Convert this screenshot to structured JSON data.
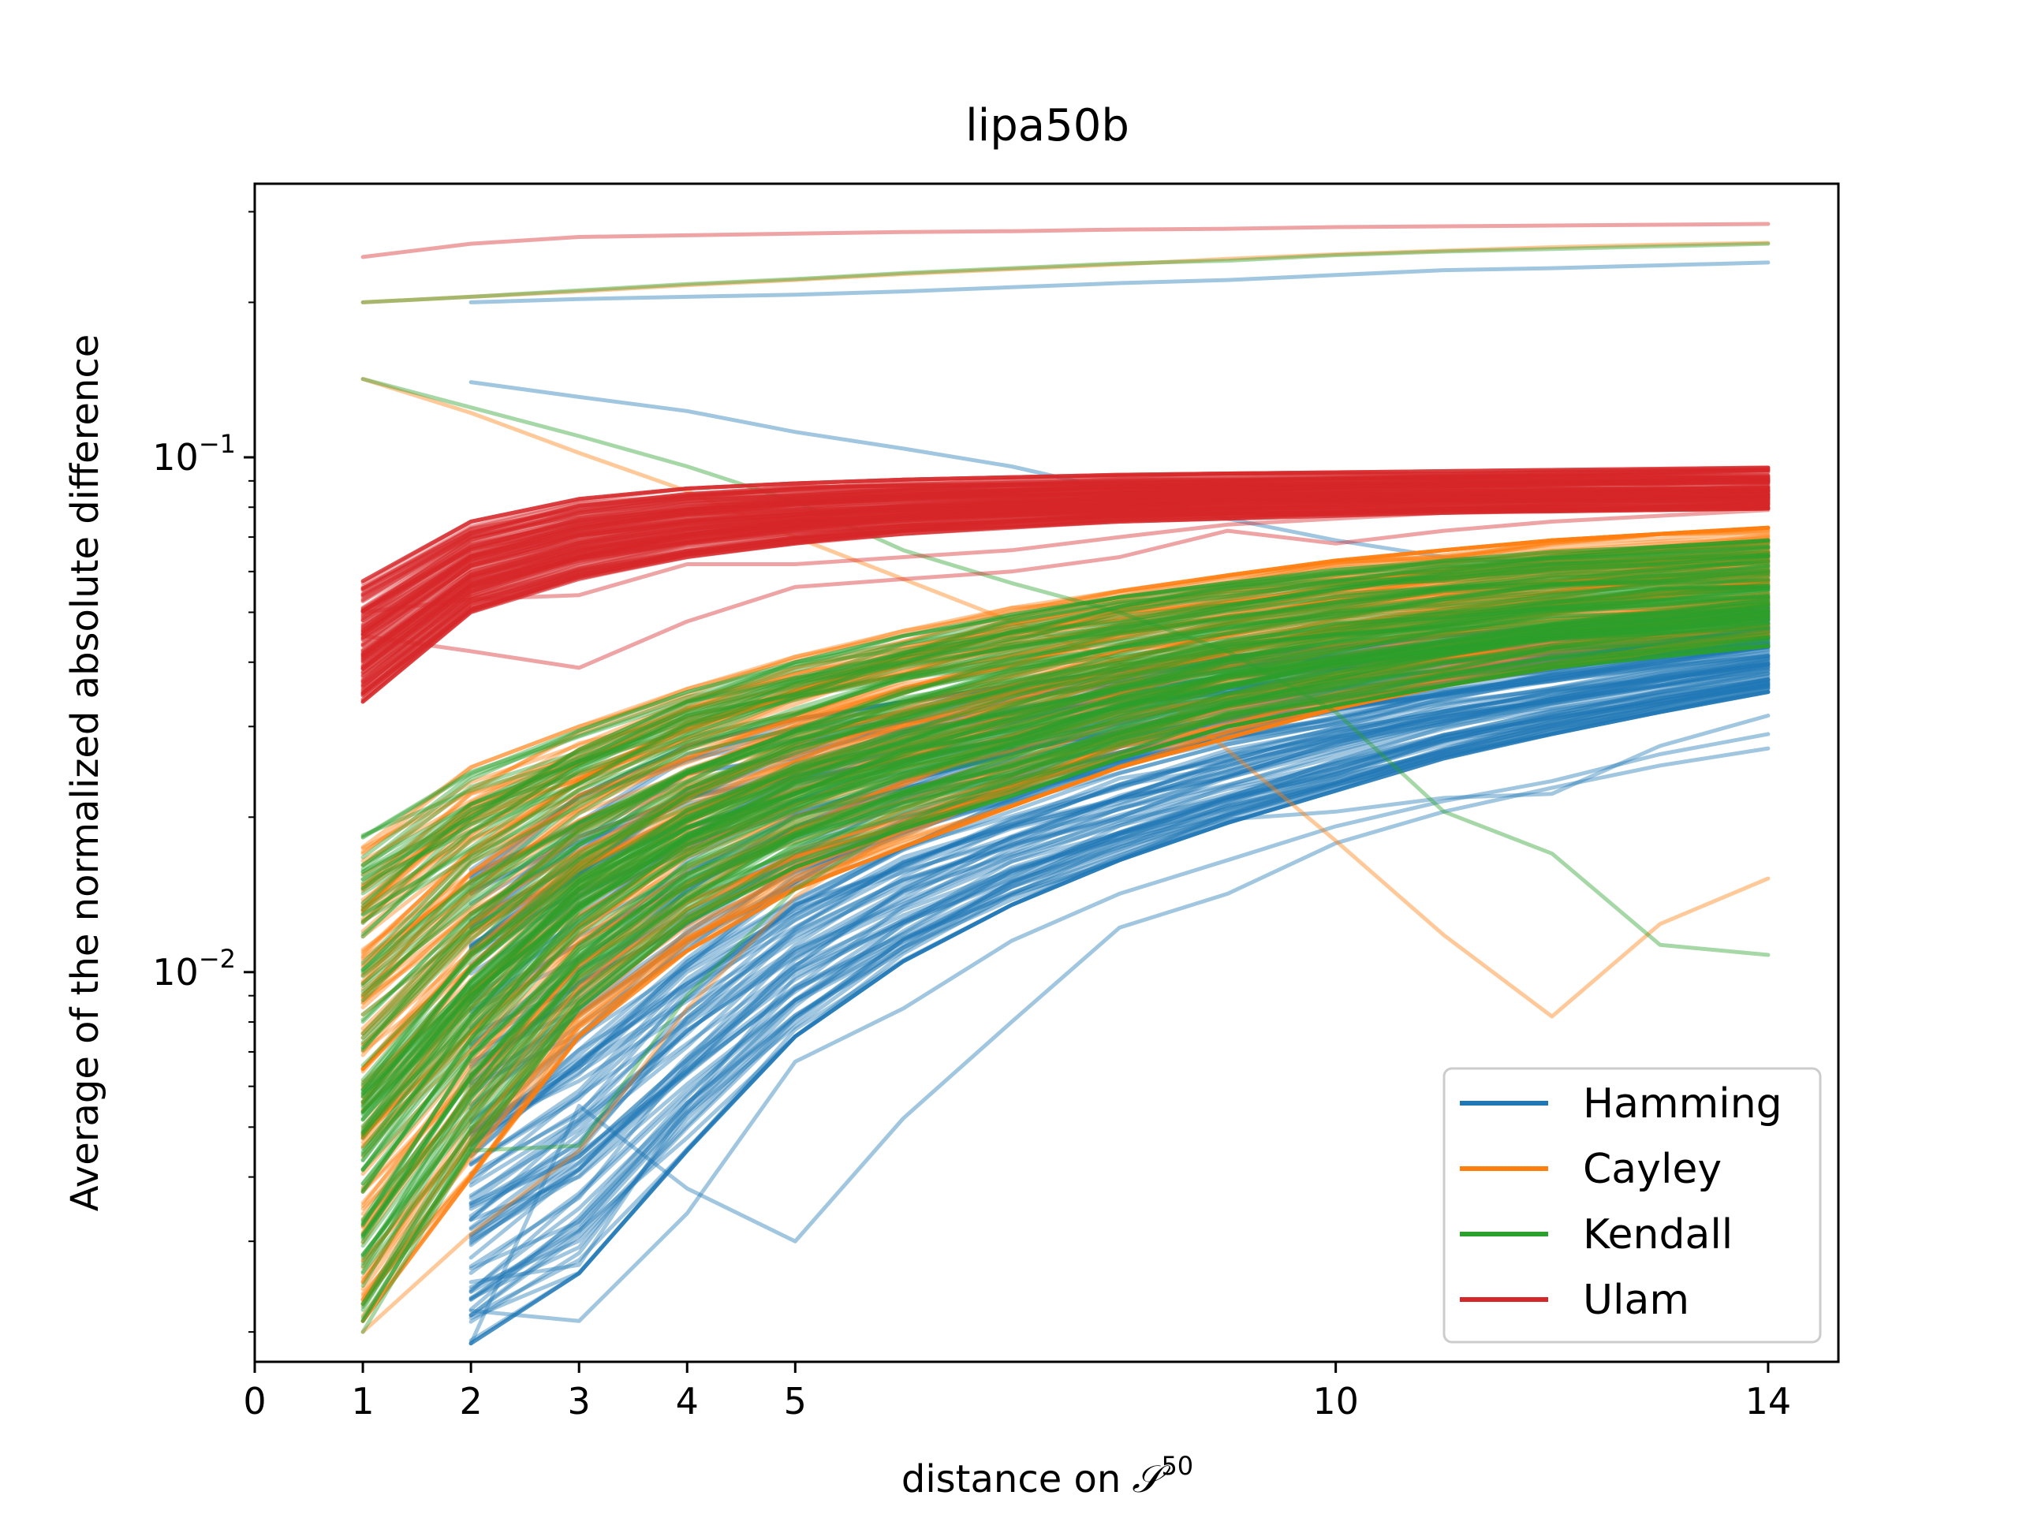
{
  "chart_data": {
    "type": "line",
    "title": "lipa50b",
    "xlabel": "distance on",
    "xlabel_symbol": "𝒮",
    "xlabel_superscript": "50",
    "ylabel": "Average of the normalized absolute difference",
    "y_scale": "log",
    "xlim": [
      0,
      14.65
    ],
    "ylim": [
      0.00175,
      0.34
    ],
    "x_ticks": [
      0,
      1,
      2,
      3,
      4,
      5,
      10,
      14
    ],
    "y_ticks": [
      {
        "value": 0.1,
        "base": "10",
        "exponent": "−1"
      },
      {
        "value": 0.01,
        "base": "10",
        "exponent": "−2"
      }
    ],
    "grid": false,
    "legend_position": "lower-right",
    "legend": [
      "Hamming",
      "Cayley",
      "Kendall",
      "Ulam"
    ],
    "colors": {
      "Hamming": "#1f77b4",
      "Cayley": "#ff7f0e",
      "Kendall": "#2ca02c",
      "Ulam": "#d62728"
    },
    "series": [
      {
        "name": "Hamming",
        "line_count": 120,
        "band_low": [
          null,
          0.0019,
          0.0026,
          0.0045,
          0.0075,
          0.0105,
          0.0135,
          0.0165,
          0.0195,
          0.0225,
          0.026,
          0.029,
          0.032,
          0.035
        ],
        "band_high": [
          null,
          0.0158,
          0.022,
          0.0275,
          0.031,
          0.0335,
          0.036,
          0.0385,
          0.041,
          0.043,
          0.045,
          0.047,
          0.049,
          0.051
        ],
        "outliers": [
          {
            "x": [
              2,
              3,
              4,
              5,
              6,
              7,
              8,
              9,
              10,
              11,
              12,
              13,
              14
            ],
            "y": [
              0.2,
              0.203,
              0.205,
              0.207,
              0.21,
              0.214,
              0.218,
              0.221,
              0.226,
              0.231,
              0.233,
              0.236,
              0.239
            ]
          },
          {
            "x": [
              2,
              3,
              4,
              5,
              6,
              7,
              8,
              9,
              10,
              11,
              12,
              13,
              14
            ],
            "y": [
              0.14,
              0.131,
              0.123,
              0.112,
              0.104,
              0.096,
              0.086,
              0.076,
              0.069,
              0.064,
              0.062,
              0.061,
              0.06
            ]
          },
          {
            "x": [
              2,
              3,
              4,
              5,
              6,
              7,
              8,
              9,
              10,
              11,
              12,
              13,
              14
            ],
            "y": [
              0.0019,
              0.0055,
              0.0038,
              0.003,
              0.0052,
              0.008,
              0.0122,
              0.0142,
              0.0178,
              0.0205,
              0.0228,
              0.0252,
              0.0272
            ]
          },
          {
            "x": [
              2,
              3,
              4,
              5,
              6,
              7,
              8,
              9,
              10,
              11,
              12,
              13,
              14
            ],
            "y": [
              0.0022,
              0.0021,
              0.0034,
              0.0067,
              0.0085,
              0.0115,
              0.0142,
              0.0165,
              0.0192,
              0.0215,
              0.0235,
              0.0265,
              0.029
            ]
          },
          {
            "x": [
              2,
              3,
              4,
              5,
              6,
              7,
              8,
              9,
              10,
              11,
              12,
              13,
              14
            ],
            "y": [
              0.0025,
              0.0027,
              0.0055,
              0.0098,
              0.0125,
              0.015,
              0.0175,
              0.0198,
              0.0205,
              0.0218,
              0.0222,
              0.0275,
              0.0315
            ]
          }
        ]
      },
      {
        "name": "Cayley",
        "line_count": 120,
        "band_low": [
          0.0021,
          0.004,
          0.0075,
          0.011,
          0.0145,
          0.0175,
          0.021,
          0.025,
          0.0285,
          0.0325,
          0.036,
          0.039,
          0.042,
          0.045
        ],
        "band_high": [
          0.0175,
          0.025,
          0.03,
          0.0355,
          0.041,
          0.046,
          0.051,
          0.055,
          0.059,
          0.063,
          0.066,
          0.069,
          0.071,
          0.073
        ],
        "outliers": [
          {
            "x": [
              1,
              2,
              3,
              4,
              5,
              6,
              7,
              8,
              9,
              10,
              11,
              12,
              13,
              14
            ],
            "y": [
              0.2,
              0.205,
              0.21,
              0.216,
              0.221,
              0.227,
              0.232,
              0.237,
              0.243,
              0.248,
              0.252,
              0.256,
              0.259,
              0.261
            ]
          },
          {
            "x": [
              1,
              2,
              3,
              4,
              5,
              6,
              7,
              8,
              9,
              10,
              11,
              12,
              13,
              14
            ],
            "y": [
              0.142,
              0.122,
              0.102,
              0.086,
              0.07,
              0.058,
              0.048,
              0.04,
              0.027,
              0.018,
              0.0118,
              0.0082,
              0.0124,
              0.0152
            ]
          },
          {
            "x": [
              1,
              2,
              3,
              4,
              5,
              6,
              7,
              8,
              9,
              10,
              11,
              12,
              13,
              14
            ],
            "y": [
              0.002,
              0.0031,
              0.0045,
              0.0085,
              0.014,
              0.019,
              0.024,
              0.029,
              0.034,
              0.038,
              0.042,
              0.046,
              0.049,
              0.052
            ]
          }
        ]
      },
      {
        "name": "Kendall",
        "line_count": 120,
        "band_low": [
          0.0021,
          0.0045,
          0.0085,
          0.0125,
          0.016,
          0.019,
          0.022,
          0.026,
          0.03,
          0.033,
          0.036,
          0.039,
          0.041,
          0.043
        ],
        "band_high": [
          0.0185,
          0.0245,
          0.0295,
          0.035,
          0.04,
          0.045,
          0.0495,
          0.0535,
          0.057,
          0.0605,
          0.063,
          0.0655,
          0.067,
          0.069
        ],
        "outliers": [
          {
            "x": [
              1,
              2,
              3,
              4,
              5,
              6,
              7,
              8,
              9,
              10,
              11,
              12,
              13,
              14
            ],
            "y": [
              0.2,
              0.205,
              0.211,
              0.217,
              0.222,
              0.228,
              0.233,
              0.238,
              0.241,
              0.247,
              0.251,
              0.254,
              0.257,
              0.26
            ]
          },
          {
            "x": [
              1,
              2,
              3,
              4,
              5,
              6,
              7,
              8,
              9,
              10,
              11,
              12,
              13,
              14
            ],
            "y": [
              0.142,
              0.125,
              0.11,
              0.096,
              0.082,
              0.066,
              0.057,
              0.05,
              0.042,
              0.032,
              0.0205,
              0.017,
              0.0113,
              0.0108
            ]
          },
          {
            "x": [
              1,
              2,
              3,
              4,
              5,
              6,
              7,
              8,
              9,
              10,
              11,
              12,
              13,
              14
            ],
            "y": [
              0.002,
              0.0045,
              0.0046,
              0.009,
              0.0145,
              0.0195,
              0.024,
              0.029,
              0.033,
              0.037,
              0.041,
              0.045,
              0.048,
              0.05
            ]
          }
        ]
      },
      {
        "name": "Ulam",
        "line_count": 120,
        "band_low": [
          0.0335,
          0.05,
          0.058,
          0.064,
          0.068,
          0.071,
          0.073,
          0.075,
          0.076,
          0.077,
          0.078,
          0.0785,
          0.079,
          0.0795
        ],
        "band_high": [
          0.0575,
          0.075,
          0.083,
          0.087,
          0.089,
          0.0905,
          0.0915,
          0.0925,
          0.093,
          0.0935,
          0.094,
          0.0945,
          0.095,
          0.0955
        ],
        "outliers": [
          {
            "x": [
              1,
              2,
              3,
              4,
              5,
              6,
              7,
              8,
              9,
              10,
              11,
              12,
              13,
              14
            ],
            "y": [
              0.245,
              0.26,
              0.268,
              0.27,
              0.272,
              0.274,
              0.275,
              0.277,
              0.278,
              0.28,
              0.281,
              0.282,
              0.283,
              0.284
            ]
          },
          {
            "x": [
              1,
              2,
              3,
              4,
              5,
              6,
              7,
              8,
              9,
              10,
              11,
              12,
              13,
              14
            ],
            "y": [
              0.045,
              0.042,
              0.039,
              0.048,
              0.056,
              0.058,
              0.06,
              0.064,
              0.072,
              0.068,
              0.072,
              0.075,
              0.077,
              0.079
            ]
          },
          {
            "x": [
              1,
              2,
              3,
              4,
              5,
              6,
              7,
              8,
              9,
              10,
              11,
              12,
              13,
              14
            ],
            "y": [
              0.05,
              0.053,
              0.054,
              0.062,
              0.062,
              0.064,
              0.066,
              0.07,
              0.074,
              0.076,
              0.078,
              0.079,
              0.08,
              0.081
            ]
          }
        ]
      }
    ]
  }
}
